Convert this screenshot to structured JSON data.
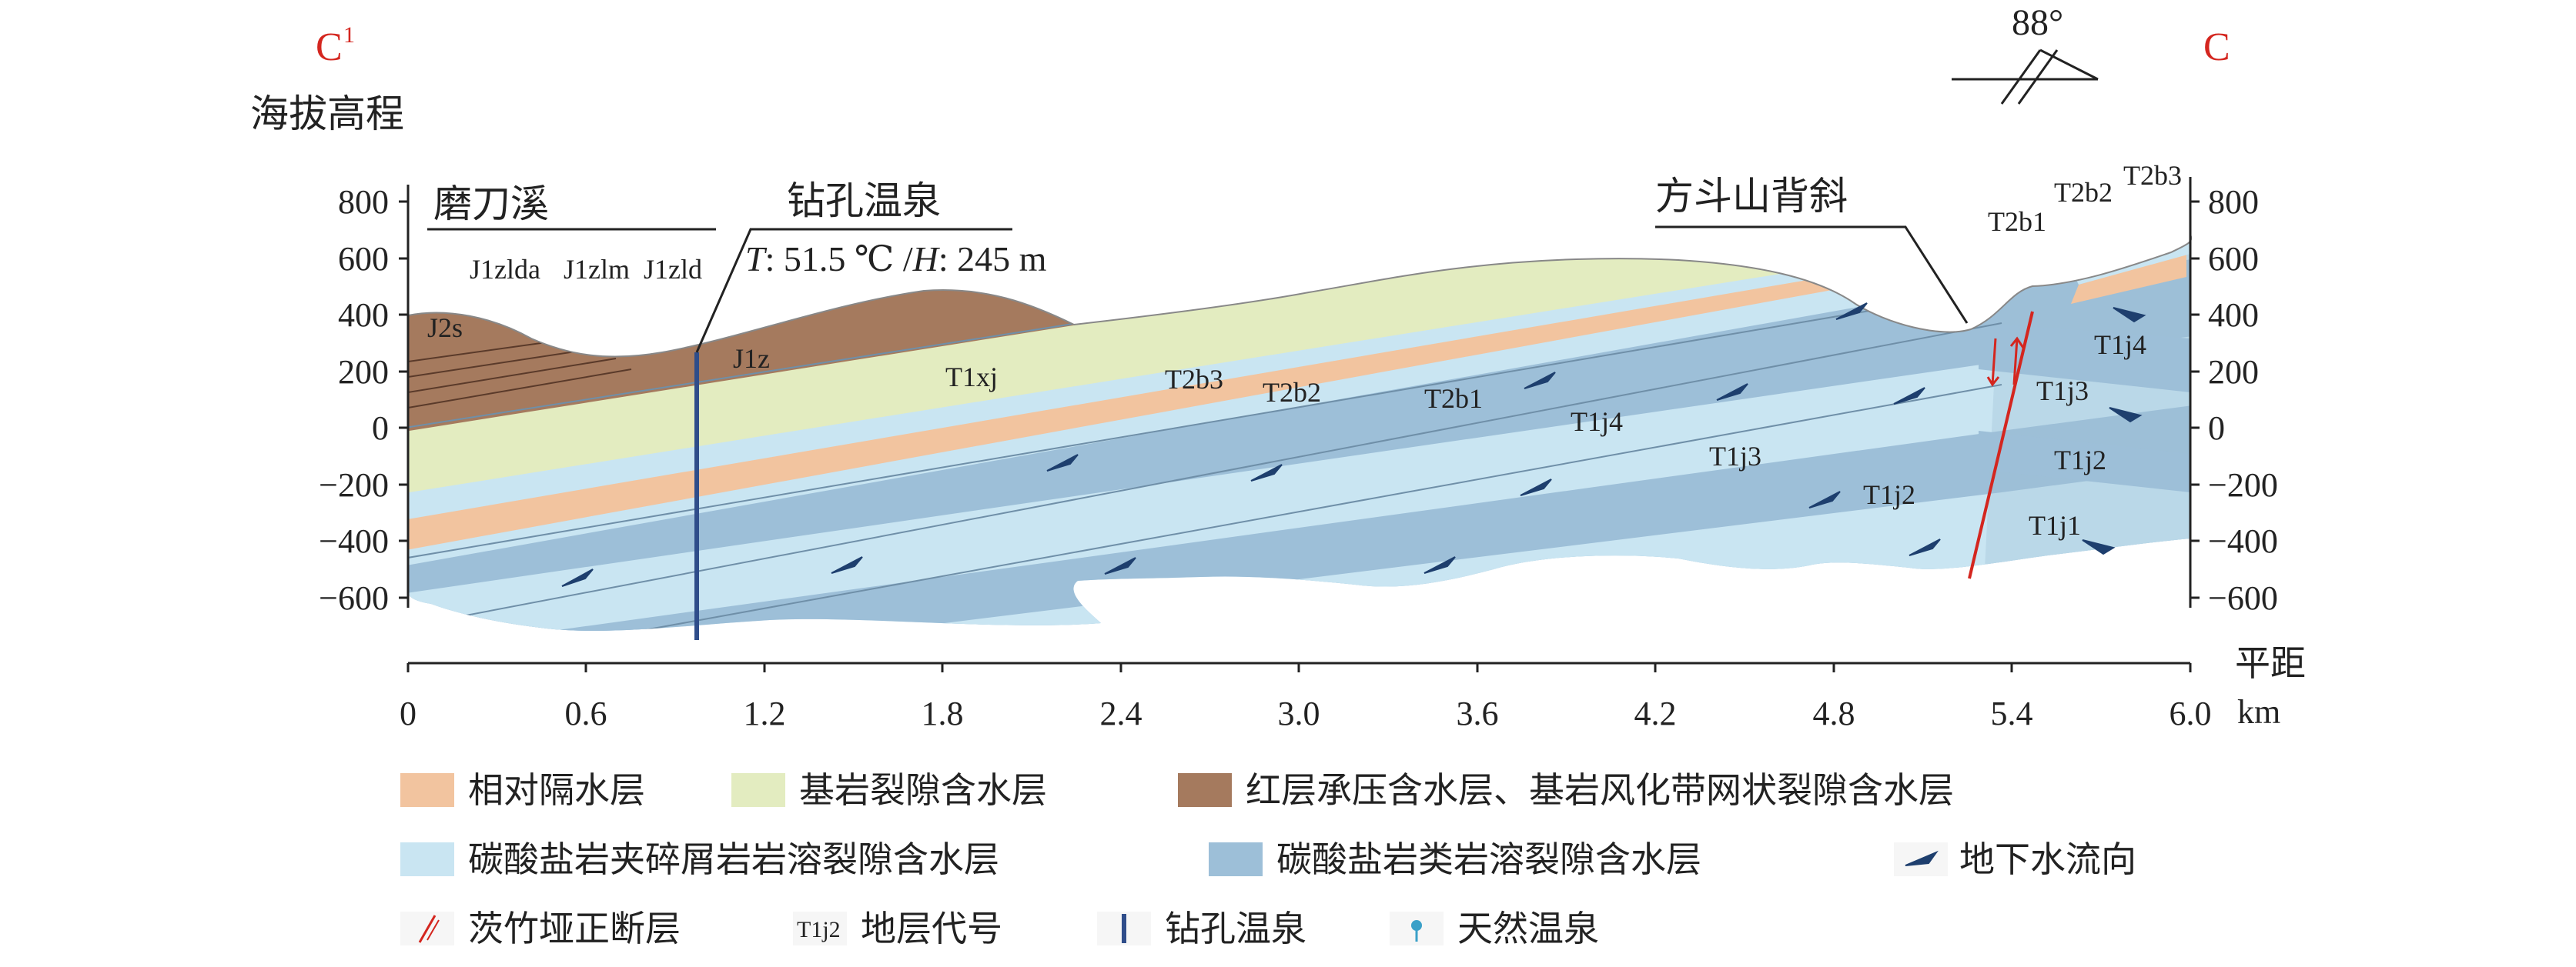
{
  "section": {
    "left_end": "C",
    "left_end_sup": "1",
    "right_end": "C",
    "y_axis_title": "海拔高程",
    "x_axis_title": "平距",
    "x_axis_unit": "km",
    "dip_label": "88°"
  },
  "axes": {
    "y_ticks": [
      "800",
      "600",
      "400",
      "200",
      "0",
      "−200",
      "−400",
      "−600"
    ],
    "x_ticks": [
      "0",
      "0.6",
      "1.2",
      "1.8",
      "2.4",
      "3.0",
      "3.6",
      "4.2",
      "4.8",
      "5.4",
      "6.0"
    ],
    "y_range": [
      -600,
      800
    ],
    "x_range": [
      0,
      6.0
    ]
  },
  "annotations": {
    "valley": "磨刀溪",
    "borehole_title": "钻孔温泉",
    "borehole_T_label": "T",
    "borehole_T_value": ": 51.5 ℃ /",
    "borehole_H_label": "H",
    "borehole_H_value": ": 245 m",
    "anticline": "方斗山背斜"
  },
  "strata": {
    "J2s": "J2s",
    "J1zlda": "J1zlda",
    "J1zlm": "J1zlm",
    "J1zld": "J1zld",
    "J1z": "J1z",
    "T1xj": "T1xj",
    "T2b3": "T2b3",
    "T2b2": "T2b2",
    "T2b1": "T2b1",
    "T1j4": "T1j4",
    "T1j3": "T1j3",
    "T1j2": "T1j2",
    "T1j1": "T1j1"
  },
  "legend": [
    {
      "key": "aquitard",
      "label": "相对隔水层",
      "color": "#f2c49f"
    },
    {
      "key": "bedrock_fissure",
      "label": "基岩裂隙含水层",
      "color": "#e3ecc0"
    },
    {
      "key": "red_beds",
      "label": "红层承压含水层、基岩风化带网状裂隙含水层",
      "color": "#a57a5e"
    },
    {
      "key": "carbonate_clastic",
      "label": "碳酸盐岩夹碎屑岩岩溶裂隙含水层",
      "color": "#c9e5f2"
    },
    {
      "key": "carbonate",
      "label": "碳酸盐岩类岩溶裂隙含水层",
      "color": "#9dbfd8"
    },
    {
      "key": "flow",
      "label": "地下水流向",
      "icon": "arrow-icon"
    },
    {
      "key": "fault",
      "label": "茨竹垭正断层",
      "icon": "fault-icon",
      "color": "#d4261f"
    },
    {
      "key": "stratum_code",
      "label": "地层代号",
      "sample": "T1j2"
    },
    {
      "key": "borehole",
      "label": "钻孔温泉",
      "icon": "borehole-icon",
      "color": "#2f4d8a"
    },
    {
      "key": "natural_spring",
      "label": "天然温泉",
      "icon": "spring-icon",
      "color": "#3aa0c8"
    }
  ]
}
